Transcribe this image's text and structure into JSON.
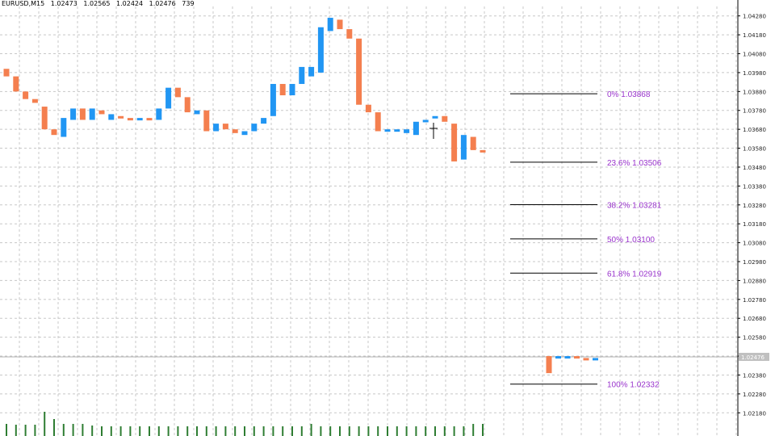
{
  "header": {
    "symbol": "EURUSD,M15",
    "open": "1.02473",
    "high": "1.02565",
    "low": "1.02424",
    "close": "1.02476",
    "volume": "739"
  },
  "colors": {
    "bull": "#2196f3",
    "bear": "#f47f4f",
    "volume": "#2e7d32",
    "fib_line": "#000000",
    "fib_text": "#9933cc",
    "grid": "#c8c8c8",
    "price_line": "#b0b0b0",
    "price_box": "#c0c0c0"
  },
  "chart_data": {
    "type": "candlestick",
    "y_axis": {
      "side": "right",
      "min": 1.021,
      "max": 1.0433,
      "ticks": [
        "1.04280",
        "1.04180",
        "1.04080",
        "1.03980",
        "1.03880",
        "1.03780",
        "1.03680",
        "1.03580",
        "1.03480",
        "1.03380",
        "1.03280",
        "1.03180",
        "1.03080",
        "1.02980",
        "1.02880",
        "1.02780",
        "1.02680",
        "1.02580",
        "1.02480",
        "1.02380",
        "1.02280",
        "1.02180"
      ]
    },
    "grid": true,
    "current_price": "1.02476",
    "candles": [
      {
        "o": 1.04,
        "c": 1.0396
      },
      {
        "o": 1.0396,
        "c": 1.0388
      },
      {
        "o": 1.0388,
        "c": 1.0384
      },
      {
        "o": 1.0384,
        "c": 1.0382
      },
      {
        "o": 1.038,
        "c": 1.0368
      },
      {
        "o": 1.0368,
        "c": 1.0365
      },
      {
        "o": 1.0364,
        "c": 1.0374
      },
      {
        "o": 1.0373,
        "c": 1.0379
      },
      {
        "o": 1.0379,
        "c": 1.0373
      },
      {
        "o": 1.0373,
        "c": 1.0379
      },
      {
        "o": 1.0378,
        "c": 1.0376
      },
      {
        "o": 1.0373,
        "c": 1.0376
      },
      {
        "o": 1.0375,
        "c": 1.0374
      },
      {
        "o": 1.0374,
        "c": 1.0373
      },
      {
        "o": 1.0373,
        "c": 1.0374
      },
      {
        "o": 1.0374,
        "c": 1.0373
      },
      {
        "o": 1.0373,
        "c": 1.0379
      },
      {
        "o": 1.0379,
        "c": 1.039
      },
      {
        "o": 1.039,
        "c": 1.0385
      },
      {
        "o": 1.0385,
        "c": 1.0377
      },
      {
        "o": 1.0376,
        "c": 1.0378
      },
      {
        "o": 1.0378,
        "c": 1.0367
      },
      {
        "o": 1.0367,
        "c": 1.0371
      },
      {
        "o": 1.0371,
        "c": 1.0368
      },
      {
        "o": 1.0368,
        "c": 1.0366
      },
      {
        "o": 1.0365,
        "c": 1.0367
      },
      {
        "o": 1.0367,
        "c": 1.0371
      },
      {
        "o": 1.0371,
        "c": 1.0374
      },
      {
        "o": 1.0375,
        "c": 1.0392
      },
      {
        "o": 1.0392,
        "c": 1.0386
      },
      {
        "o": 1.0386,
        "c": 1.0392
      },
      {
        "o": 1.0392,
        "c": 1.0401
      },
      {
        "o": 1.0396,
        "c": 1.0401
      },
      {
        "o": 1.0398,
        "c": 1.0422
      },
      {
        "o": 1.042,
        "c": 1.0427
      },
      {
        "o": 1.0426,
        "c": 1.0421
      },
      {
        "o": 1.0421,
        "c": 1.0416
      },
      {
        "o": 1.0416,
        "c": 1.0381
      },
      {
        "o": 1.0381,
        "c": 1.0377
      },
      {
        "o": 1.0377,
        "c": 1.0367
      },
      {
        "o": 1.0367,
        "c": 1.0368
      },
      {
        "o": 1.0367,
        "c": 1.0368
      },
      {
        "o": 1.0366,
        "c": 1.0368
      },
      {
        "o": 1.0365,
        "c": 1.0372
      },
      {
        "o": 1.0373,
        "c": 1.0373
      },
      {
        "o": 1.0374,
        "c": 1.0375
      },
      {
        "o": 1.0375,
        "c": 1.0372
      },
      {
        "o": 1.0371,
        "c": 1.0351
      },
      {
        "o": 1.0352,
        "c": 1.0365
      },
      {
        "o": 1.0364,
        "c": 1.0357
      },
      {
        "o": 1.0357,
        "c": 1.0356
      }
    ],
    "volumes": [
      0.3,
      0.28,
      0.28,
      0.28,
      0.6,
      0.42,
      0.3,
      0.3,
      0.3,
      0.26,
      0.24,
      0.24,
      0.24,
      0.24,
      0.24,
      0.24,
      0.24,
      0.24,
      0.24,
      0.24,
      0.24,
      0.24,
      0.24,
      0.24,
      0.24,
      0.24,
      0.24,
      0.24,
      0.24,
      0.24,
      0.24,
      0.24,
      0.3,
      0.24,
      0.24,
      0.24,
      0.24,
      0.24,
      0.24,
      0.24,
      0.24,
      0.24,
      0.24,
      0.24,
      0.24,
      0.24,
      0.24,
      0.24,
      0.24,
      0.3,
      0.3
    ],
    "fibonacci": [
      {
        "label": "0% 1.03868",
        "price": 1.03868
      },
      {
        "label": "23.6% 1.03506",
        "price": 1.03506
      },
      {
        "label": "38.2% 1.03281",
        "price": 1.03281
      },
      {
        "label": "50% 1.03100",
        "price": 1.031
      },
      {
        "label": "61.8% 1.02919",
        "price": 1.02919
      },
      {
        "label": "100% 1.02332",
        "price": 1.02332
      }
    ],
    "recent_candles": [
      {
        "o": 1.0248,
        "c": 1.0239
      },
      {
        "o": 1.0247,
        "c": 1.0248
      },
      {
        "o": 1.0247,
        "c": 1.0248
      },
      {
        "o": 1.0248,
        "c": 1.0247
      },
      {
        "o": 1.0247,
        "c": 1.0246
      },
      {
        "o": 1.0246,
        "c": 1.0247
      }
    ]
  }
}
